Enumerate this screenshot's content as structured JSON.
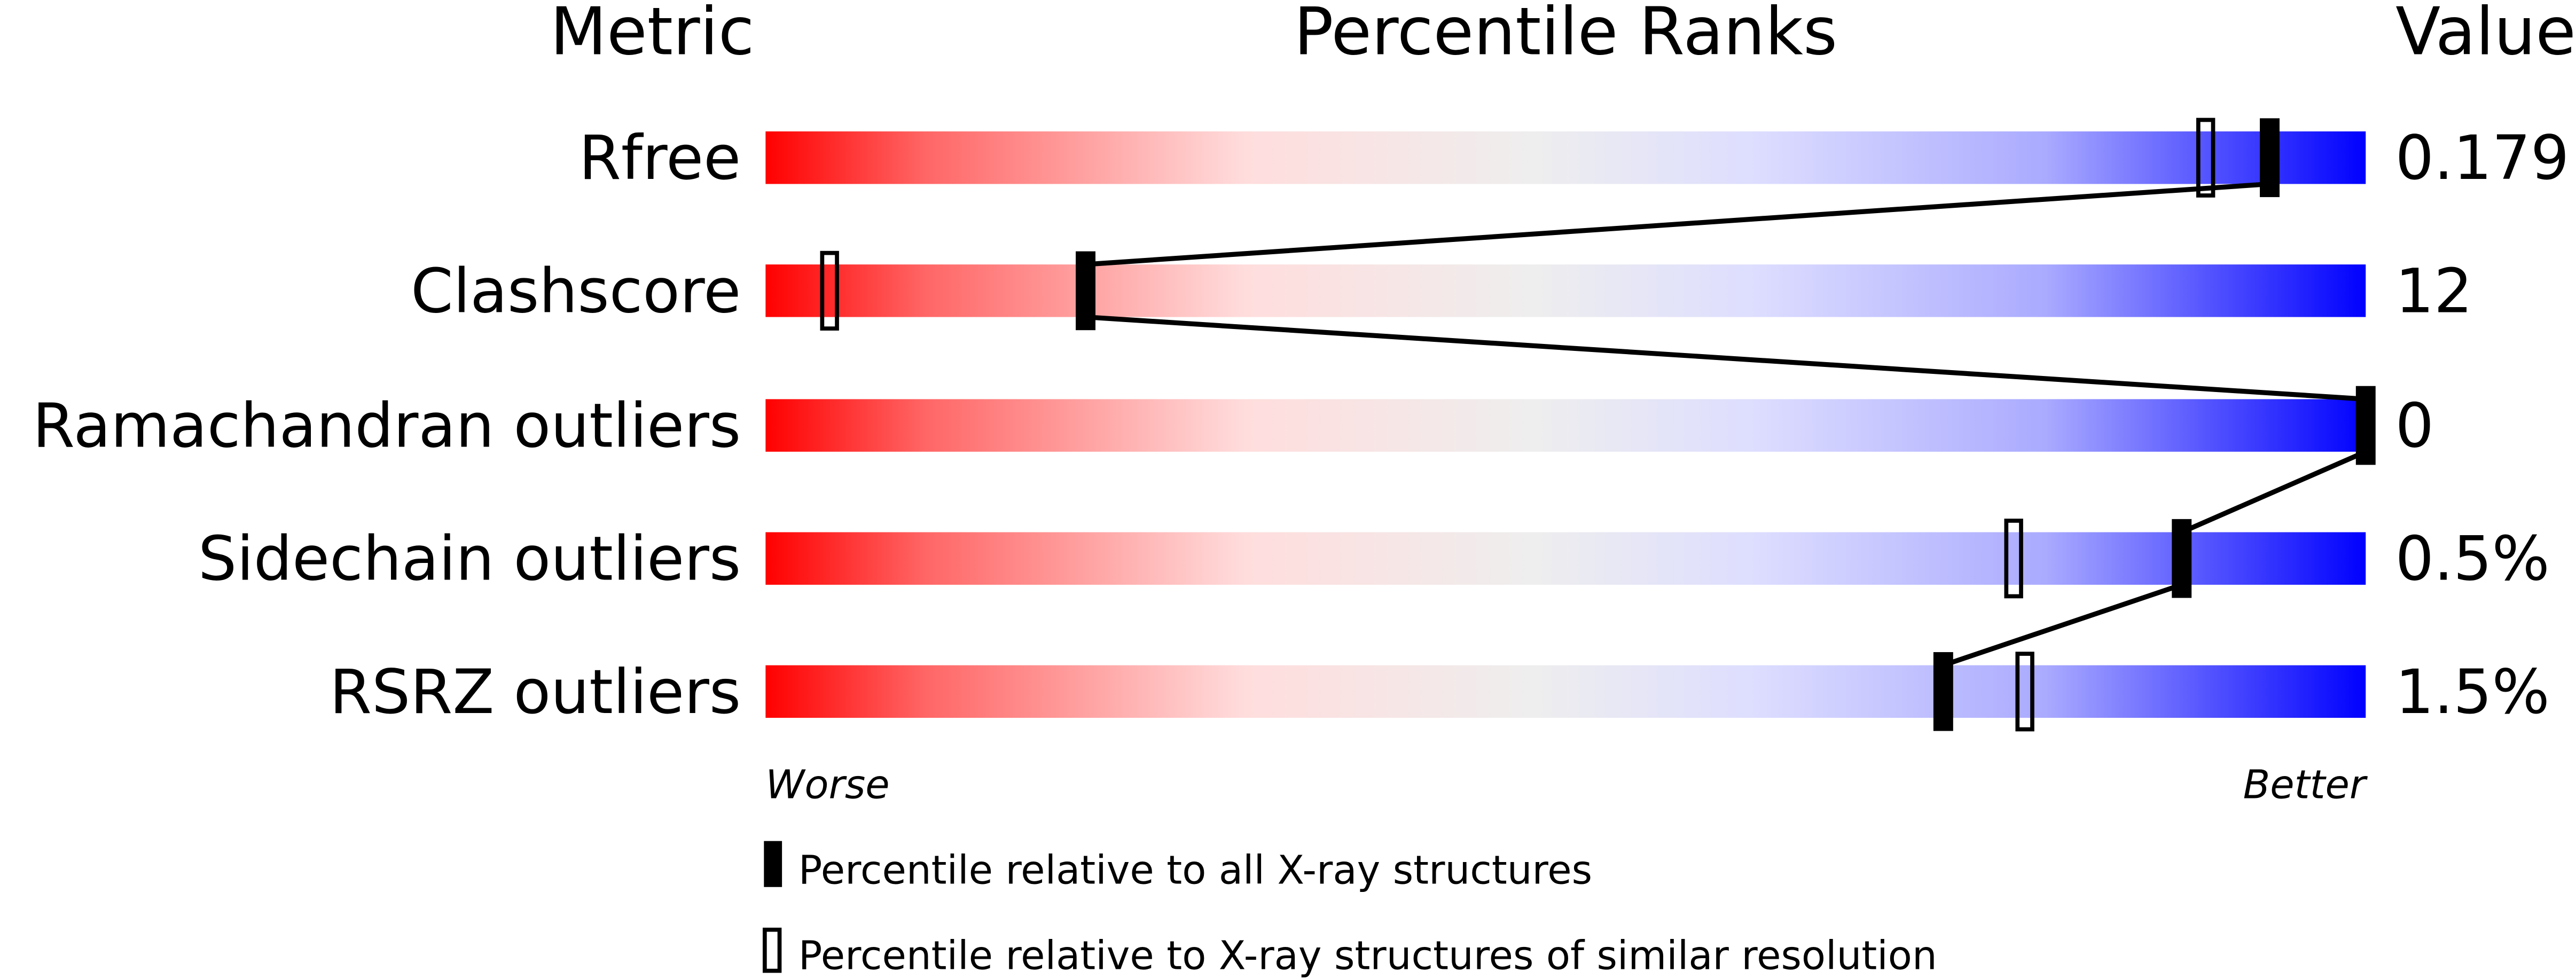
{
  "chart_data": {
    "type": "percentile-bar",
    "headers": {
      "metric": "Metric",
      "ranks": "Percentile Ranks",
      "value": "Value"
    },
    "xlim": [
      0,
      100
    ],
    "scale_labels": {
      "left": "Worse",
      "right": "Better"
    },
    "gradient_colors": [
      "#ff0000",
      "#ff6666",
      "#ffdddd",
      "#eeeeee",
      "#ddddff",
      "#aaaaff",
      "#0000ff"
    ],
    "metrics": [
      {
        "name": "Rfree",
        "value": "0.179",
        "percentile_all": 94,
        "percentile_similar": 90
      },
      {
        "name": "Clashscore",
        "value": "12",
        "percentile_all": 20,
        "percentile_similar": 4
      },
      {
        "name": "Ramachandran outliers",
        "value": "0",
        "percentile_all": 100,
        "percentile_similar": null
      },
      {
        "name": "Sidechain outliers",
        "value": "0.5%",
        "percentile_all": 88.5,
        "percentile_similar": 78
      },
      {
        "name": "RSRZ outliers",
        "value": "1.5%",
        "percentile_all": 73.6,
        "percentile_similar": 78.7
      }
    ],
    "legend": [
      {
        "marker": "filled",
        "label": "Percentile relative to all X-ray structures"
      },
      {
        "marker": "open",
        "label": "Percentile relative to X-ray structures of similar resolution"
      }
    ]
  }
}
